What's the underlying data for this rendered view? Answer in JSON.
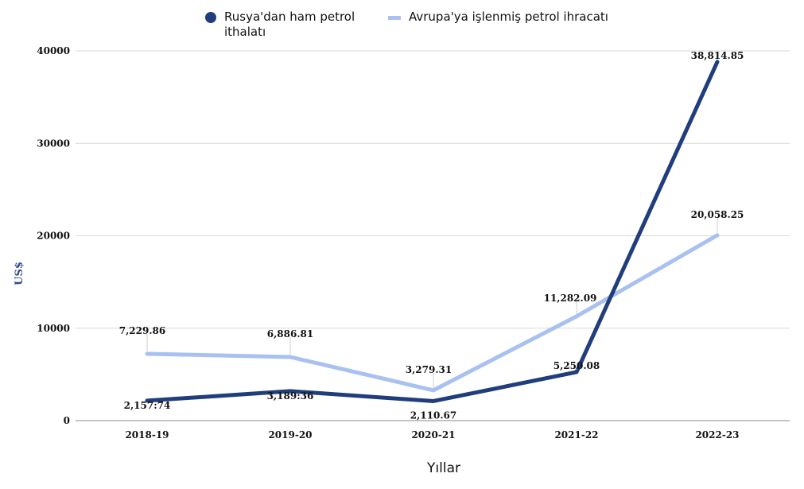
{
  "chart_data": {
    "type": "line",
    "categories": [
      "2018-19",
      "2019-20",
      "2020-21",
      "2021-22",
      "2022-23"
    ],
    "series": [
      {
        "name": "Rusya'dan ham petrol ithalatı",
        "color": "#213e7c",
        "marker": "circle",
        "values": [
          2157.74,
          3189.36,
          2110.67,
          5250.08,
          38814.85
        ],
        "labels": [
          "2,157:74",
          "3,189:36",
          "2,110.67",
          "5,250.08",
          "38,814.85"
        ]
      },
      {
        "name": "Avrupa'ya işlenmiş petrol ihracatı",
        "color": "#a9c1f0",
        "marker": "line",
        "values": [
          7229.86,
          6886.81,
          3279.31,
          11282.09,
          20058.25
        ],
        "labels": [
          "7,229.86",
          "6,886.81",
          "3,279.31",
          "11,282.09",
          "20,058.25"
        ]
      }
    ],
    "yticks": [
      "0",
      "10000",
      "20000",
      "30000",
      "40000"
    ],
    "ylim": [
      0,
      40000
    ],
    "xlabel": "Yıllar",
    "ylabel": "US$",
    "grid": true,
    "legend_position": "top"
  }
}
